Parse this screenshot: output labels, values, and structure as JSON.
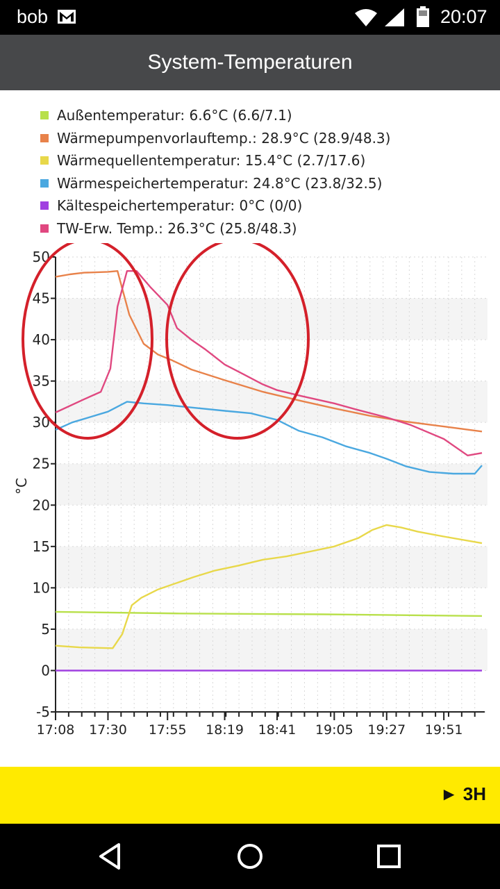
{
  "status_bar": {
    "user": "bob",
    "time": "20:07",
    "icons": [
      "gmail-icon",
      "wifi-icon",
      "signal-icon",
      "battery-icon"
    ]
  },
  "app_bar": {
    "title": "System-Temperaturen"
  },
  "legend": [
    {
      "label": "Außentemperatur:",
      "value": "6.6°C (6.6/7.1)",
      "color": "#b8e04a"
    },
    {
      "label": "Wärmepumpenvorlauftemp.:",
      "value": "28.9°C (28.9/48.3)",
      "color": "#e8824a"
    },
    {
      "label": "Wärmequellentemperatur:",
      "value": "15.4°C (2.7/17.6)",
      "color": "#e8d84a"
    },
    {
      "label": "Wärmespeichertemperatur:",
      "value": "24.8°C (23.8/32.5)",
      "color": "#4aa8e0"
    },
    {
      "label": "Kältespeichertemperatur:",
      "value": "0°C (0/0)",
      "color": "#a040e0"
    },
    {
      "label": "TW-Erw. Temp.:",
      "value": "26.3°C (25.8/48.3)",
      "color": "#e04880"
    }
  ],
  "chart_data": {
    "type": "line",
    "ylabel": "°C",
    "xlabel": "",
    "ylim": [
      -5,
      50
    ],
    "yticks": [
      -5,
      0,
      5,
      10,
      15,
      20,
      25,
      30,
      35,
      40,
      45,
      50
    ],
    "xlim": [
      "17:08",
      "20:07"
    ],
    "xtick_labels": [
      "17:08",
      "17:30",
      "17:55",
      "18:19",
      "18:41",
      "19:05",
      "19:27",
      "19:51"
    ],
    "grid": true,
    "series": [
      {
        "name": "Außentemperatur",
        "color": "#b8e04a",
        "x": [
          "17:08",
          "18:00",
          "19:00",
          "20:07"
        ],
        "y": [
          7.1,
          6.9,
          6.8,
          6.6
        ]
      },
      {
        "name": "Wärmepumpenvorlauftemp.",
        "color": "#e8824a",
        "x": [
          "17:08",
          "17:14",
          "17:20",
          "17:30",
          "17:34",
          "17:39",
          "17:45",
          "17:51",
          "17:57",
          "18:05",
          "18:19",
          "18:35",
          "18:51",
          "19:05",
          "19:20",
          "19:35",
          "19:51",
          "20:07"
        ],
        "y": [
          47.6,
          47.9,
          48.1,
          48.2,
          48.3,
          43.0,
          39.5,
          38.2,
          37.5,
          36.4,
          35.1,
          33.7,
          32.6,
          31.7,
          30.8,
          30.1,
          29.5,
          28.9
        ]
      },
      {
        "name": "Wärmequellentemperatur",
        "color": "#e8d84a",
        "x": [
          "17:08",
          "17:18",
          "17:32",
          "17:36",
          "17:40",
          "17:44",
          "17:51",
          "17:59",
          "18:06",
          "18:15",
          "18:25",
          "18:35",
          "18:45",
          "18:55",
          "19:05",
          "19:15",
          "19:21",
          "19:27",
          "19:33",
          "19:40",
          "19:51",
          "20:07"
        ],
        "y": [
          3.0,
          2.8,
          2.7,
          4.4,
          7.9,
          8.8,
          9.8,
          10.6,
          11.3,
          12.1,
          12.7,
          13.4,
          13.8,
          14.4,
          15.0,
          16.0,
          17.0,
          17.6,
          17.3,
          16.8,
          16.2,
          15.4
        ]
      },
      {
        "name": "Wärmespeichertemperatur",
        "color": "#4aa8e0",
        "x": [
          "17:08",
          "17:15",
          "17:22",
          "17:30",
          "17:38",
          "17:45",
          "17:55",
          "18:05",
          "18:19",
          "18:30",
          "18:41",
          "18:50",
          "19:00",
          "19:10",
          "19:20",
          "19:27",
          "19:35",
          "19:45",
          "19:55",
          "20:04",
          "20:07"
        ],
        "y": [
          29.1,
          30.0,
          30.6,
          31.3,
          32.5,
          32.3,
          32.1,
          31.8,
          31.4,
          31.1,
          30.3,
          29.0,
          28.2,
          27.1,
          26.3,
          25.6,
          24.7,
          24.0,
          23.8,
          23.8,
          24.8
        ]
      },
      {
        "name": "Kältespeichertemperatur",
        "color": "#a040e0",
        "x": [
          "17:08",
          "20:07"
        ],
        "y": [
          0,
          0
        ]
      },
      {
        "name": "TW-Erw. Temp.",
        "color": "#e04880",
        "x": [
          "17:08",
          "17:20",
          "17:27",
          "17:31",
          "17:34",
          "17:38",
          "17:42",
          "17:48",
          "17:55",
          "17:59",
          "18:05",
          "18:11",
          "18:19",
          "18:27",
          "18:35",
          "18:41",
          "18:51",
          "19:05",
          "19:15",
          "19:27",
          "19:37",
          "19:51",
          "20:01",
          "20:07"
        ],
        "y": [
          31.2,
          32.8,
          33.7,
          36.5,
          44.0,
          48.3,
          48.3,
          46.3,
          44.2,
          41.4,
          40.0,
          38.8,
          37.0,
          35.8,
          34.6,
          33.9,
          33.2,
          32.3,
          31.5,
          30.6,
          29.7,
          28.0,
          26.0,
          26.3
        ]
      }
    ]
  },
  "annotations": {
    "color": "#d4202a",
    "circles": 2
  },
  "range_bar": {
    "label": "► 3H"
  },
  "nav_bar": {
    "icons": [
      "back-icon",
      "home-icon",
      "recents-icon"
    ]
  }
}
